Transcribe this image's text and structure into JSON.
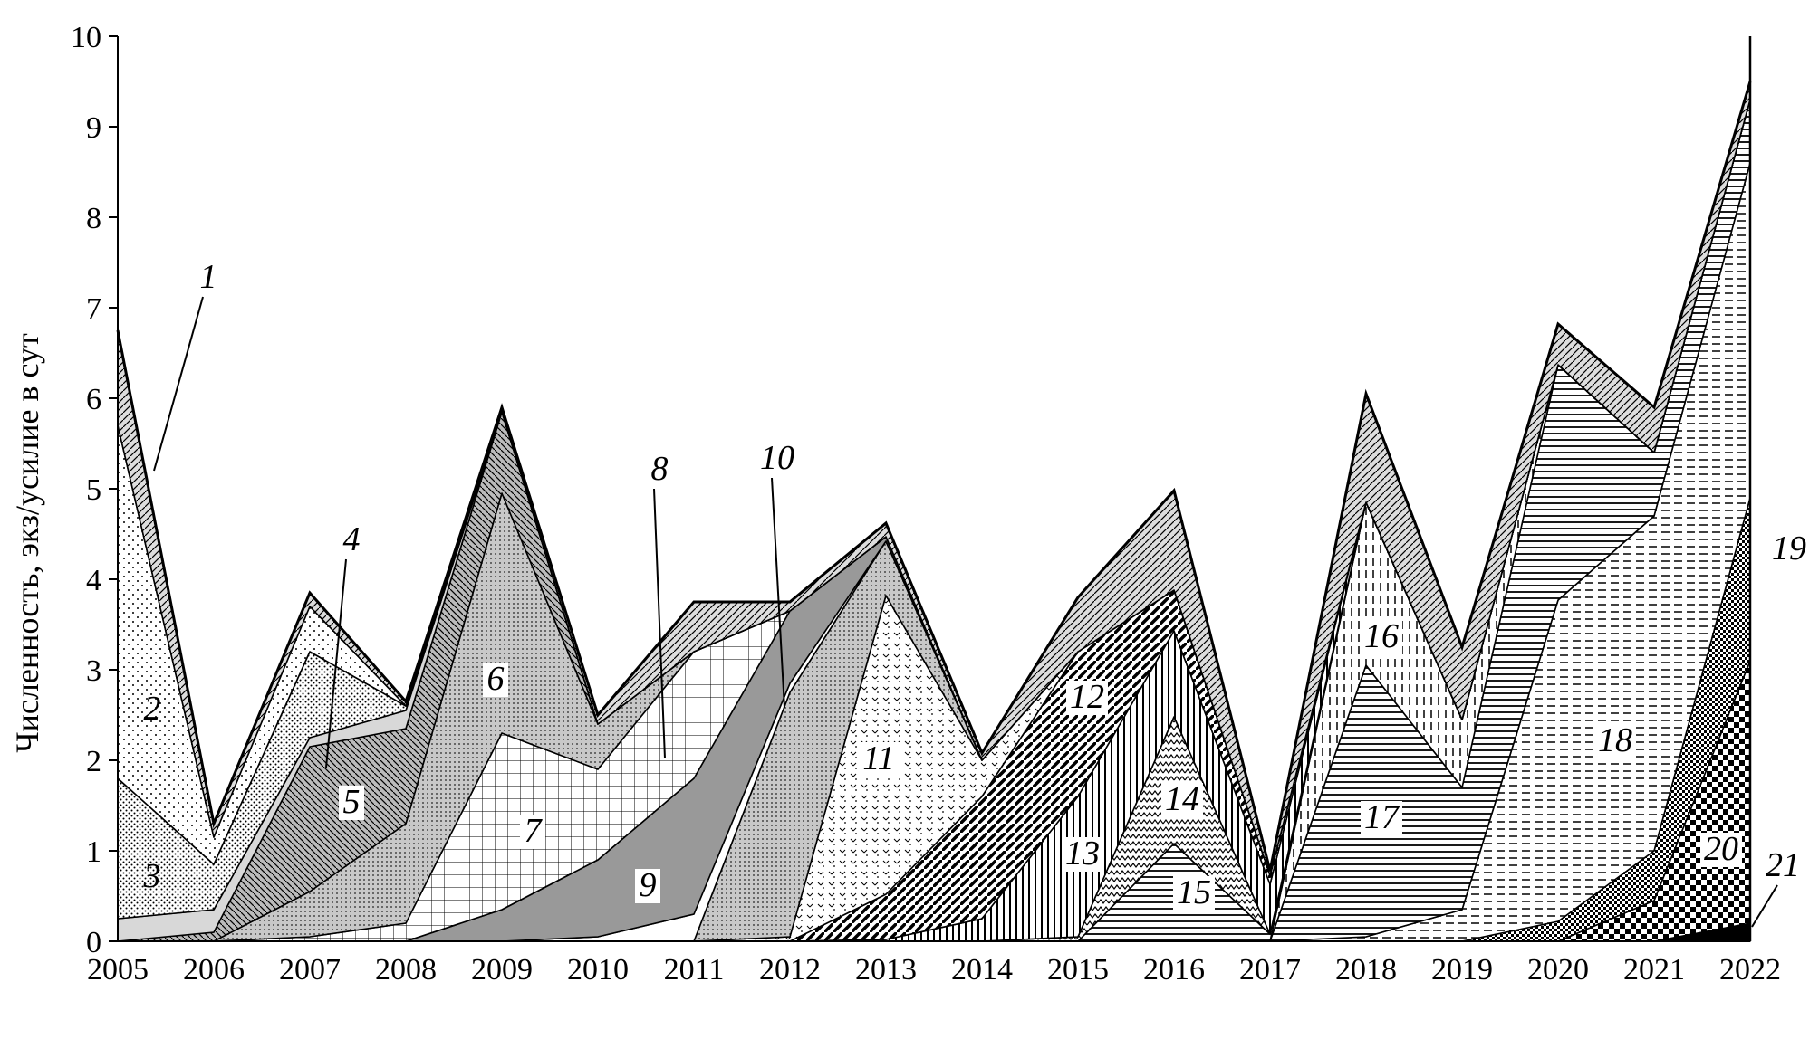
{
  "chart_data": {
    "type": "area",
    "stacked": true,
    "title": "",
    "ylabel": "Численность, экз/усилие в сут",
    "xlabel": "",
    "x": [
      "2005",
      "2006",
      "2007",
      "2008",
      "2009",
      "2010",
      "2011",
      "2012",
      "2013",
      "2014",
      "2015",
      "2016",
      "2017",
      "2018",
      "2019",
      "2020",
      "2021",
      "2022"
    ],
    "ylim": [
      0,
      10
    ],
    "yticks": [
      "0",
      "1",
      "2",
      "3",
      "4",
      "5",
      "6",
      "7",
      "8",
      "9",
      "10"
    ],
    "grid": false,
    "series": [
      {
        "name": "21",
        "values": [
          0,
          0,
          0,
          0,
          0,
          0,
          0,
          0,
          0,
          0,
          0,
          0,
          0,
          0,
          0,
          0,
          0,
          0.2
        ]
      },
      {
        "name": "20",
        "values": [
          0,
          0,
          0,
          0,
          0,
          0,
          0,
          0,
          0,
          0,
          0,
          0,
          0,
          0,
          0,
          0,
          0.45,
          2.9
        ]
      },
      {
        "name": "19",
        "values": [
          0,
          0,
          0,
          0,
          0,
          0,
          0,
          0,
          0,
          0,
          0,
          0,
          0,
          0,
          0,
          0.22,
          0.55,
          1.8
        ]
      },
      {
        "name": "18",
        "values": [
          0,
          0,
          0,
          0,
          0,
          0,
          0,
          0,
          0,
          0,
          0,
          0,
          0,
          0.05,
          0.35,
          3.55,
          3.7,
          3.7
        ]
      },
      {
        "name": "17",
        "values": [
          0,
          0,
          0,
          0,
          0,
          0,
          0,
          0,
          0,
          0,
          0,
          0,
          0,
          3.0,
          1.35,
          2.6,
          0.7,
          0.7
        ]
      },
      {
        "name": "16",
        "values": [
          0,
          0,
          0,
          0,
          0,
          0,
          0,
          0,
          0,
          0,
          0,
          0,
          0,
          1.8,
          0.75,
          0,
          0,
          0
        ]
      },
      {
        "name": "15",
        "values": [
          0,
          0,
          0,
          0,
          0,
          0,
          0,
          0,
          0,
          0,
          0,
          1.08,
          0.08,
          0,
          0,
          0,
          0,
          0
        ]
      },
      {
        "name": "14",
        "values": [
          0,
          0,
          0,
          0,
          0,
          0,
          0,
          0,
          0,
          0,
          0.05,
          1.4,
          0,
          0,
          0,
          0,
          0,
          0
        ]
      },
      {
        "name": "13",
        "values": [
          0,
          0,
          0,
          0,
          0,
          0,
          0,
          0,
          0.02,
          0.25,
          1.55,
          0.95,
          0.55,
          0,
          0,
          0,
          0,
          0
        ]
      },
      {
        "name": "12",
        "values": [
          0,
          0,
          0,
          0,
          0,
          0,
          0,
          0,
          0.5,
          1.35,
          1.6,
          0.45,
          0.1,
          0,
          0,
          0,
          0,
          0
        ]
      },
      {
        "name": "11",
        "values": [
          0,
          0,
          0,
          0,
          0,
          0,
          0,
          0.05,
          3.3,
          0.4,
          0,
          0,
          0,
          0,
          0,
          0,
          0,
          0
        ]
      },
      {
        "name": "10",
        "values": [
          0,
          0,
          0,
          0,
          0,
          0,
          0,
          2.7,
          0.6,
          0,
          0,
          0,
          0,
          0,
          0,
          0,
          0,
          0
        ]
      },
      {
        "name": "9",
        "values": [
          0,
          0,
          0,
          0,
          0,
          0.05,
          0.3,
          0.1,
          0,
          0,
          0,
          0,
          0,
          0,
          0,
          0,
          0,
          0
        ]
      },
      {
        "name": "8",
        "values": [
          0,
          0,
          0,
          0,
          0.35,
          0.85,
          1.5,
          0.8,
          0.05,
          0,
          0,
          0,
          0,
          0,
          0,
          0,
          0,
          0
        ]
      },
      {
        "name": "7",
        "values": [
          0,
          0,
          0.05,
          0.2,
          1.95,
          1.0,
          1.4,
          0,
          0,
          0,
          0,
          0,
          0,
          0,
          0,
          0,
          0,
          0
        ]
      },
      {
        "name": "6",
        "values": [
          0,
          0,
          0.5,
          1.1,
          2.65,
          0.5,
          0,
          0,
          0,
          0,
          0,
          0,
          0,
          0,
          0,
          0,
          0,
          0
        ]
      },
      {
        "name": "5",
        "values": [
          0,
          0.1,
          1.6,
          1.05,
          0.9,
          0,
          0,
          0,
          0,
          0,
          0,
          0,
          0,
          0,
          0,
          0,
          0,
          0
        ]
      },
      {
        "name": "4",
        "values": [
          0.25,
          0.25,
          0.1,
          0.2,
          0,
          0,
          0,
          0,
          0,
          0,
          0,
          0,
          0,
          0,
          0,
          0,
          0,
          0
        ]
      },
      {
        "name": "3",
        "values": [
          1.55,
          0.5,
          0.95,
          0.05,
          0,
          0,
          0,
          0,
          0,
          0,
          0,
          0,
          0,
          0,
          0,
          0,
          0,
          0
        ]
      },
      {
        "name": "2",
        "values": [
          3.9,
          0.3,
          0.5,
          0,
          0,
          0,
          0,
          0,
          0,
          0,
          0,
          0,
          0,
          0,
          0,
          0,
          0,
          0
        ]
      },
      {
        "name": "1",
        "values": [
          1.05,
          0.15,
          0.15,
          0.05,
          0.05,
          0.1,
          0.55,
          0.1,
          0.15,
          0.08,
          0.6,
          1.1,
          0.05,
          1.2,
          0.8,
          0.45,
          0.5,
          0.2
        ]
      }
    ],
    "labels": [
      "1",
      "2",
      "3",
      "4",
      "5",
      "6",
      "7",
      "8",
      "9",
      "10",
      "11",
      "12",
      "13",
      "14",
      "15",
      "16",
      "17",
      "18",
      "19",
      "20",
      "21"
    ]
  }
}
